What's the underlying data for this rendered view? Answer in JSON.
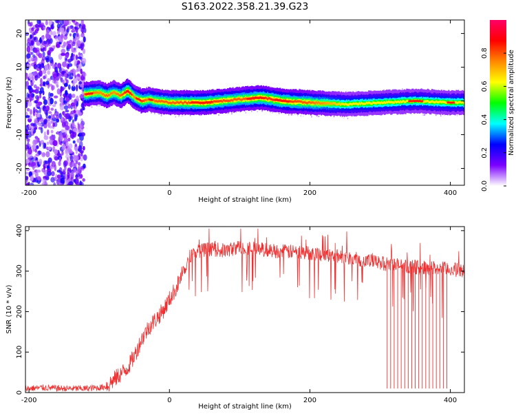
{
  "title": "S163.2022.358.21.39.G23",
  "chart_data": [
    {
      "type": "heatmap",
      "xlabel": "Height of straight line (km)",
      "ylabel": "Frequency (Hz)",
      "xlim": [
        -205,
        420
      ],
      "ylim": [
        -25,
        24
      ],
      "xticks": [
        -200,
        0,
        200,
        400
      ],
      "yticks": [
        -20,
        -10,
        0,
        10,
        20
      ],
      "colorbar": {
        "label": "Normalized spectral amplitude",
        "range": [
          0,
          1
        ],
        "ticks": [
          0.0,
          0.2,
          0.4,
          0.6,
          0.8
        ],
        "colors": [
          "#ffffff",
          "#7b00ff",
          "#0000ff",
          "#00ffff",
          "#00ff00",
          "#ffff00",
          "#ff8800",
          "#ff0000",
          "#ff0066"
        ]
      },
      "ridge": {
        "x": [
          -120,
          -100,
          -90,
          -80,
          -70,
          -60,
          -50,
          -40,
          -30,
          -20,
          0,
          50,
          100,
          130,
          160,
          200,
          250,
          300,
          350,
          400,
          420
        ],
        "freq": [
          2,
          2.5,
          1.5,
          2.5,
          1.5,
          3,
          1,
          0,
          0.5,
          0,
          -0.5,
          -0.5,
          0.5,
          1,
          0,
          -0.5,
          -1,
          -0.5,
          0,
          -0.5,
          -0.5
        ],
        "peak_amplitude": [
          0.85,
          0.8,
          0.85,
          0.8,
          0.85,
          0.95,
          0.8,
          0.9,
          0.8,
          0.85,
          0.85,
          0.9,
          0.85,
          0.9,
          0.9,
          0.85,
          0.7,
          0.7,
          0.7,
          0.7,
          0.7
        ]
      },
      "noise_region_x": [
        -205,
        -120
      ]
    },
    {
      "type": "line",
      "xlabel": "Height of straight line (km)",
      "ylabel": "SNR (10 * v/v)",
      "xlim": [
        -205,
        420
      ],
      "ylim": [
        0,
        410
      ],
      "xticks": [
        -200,
        0,
        200,
        400
      ],
      "yticks": [
        0,
        100,
        200,
        300,
        400
      ],
      "color": "#f03030",
      "series_x": [
        -205,
        -180,
        -150,
        -120,
        -100,
        -90,
        -80,
        -70,
        -60,
        -50,
        -40,
        -30,
        -20,
        -10,
        0,
        10,
        20,
        30,
        40,
        60,
        80,
        100,
        150,
        200,
        250,
        300,
        350,
        400,
        420
      ],
      "series_y": [
        10,
        12,
        10,
        10,
        12,
        15,
        30,
        45,
        60,
        90,
        130,
        160,
        180,
        200,
        230,
        260,
        300,
        340,
        350,
        355,
        350,
        360,
        350,
        345,
        335,
        320,
        310,
        305,
        300
      ],
      "dropouts_x": [
        310,
        315,
        320,
        325,
        330,
        335,
        340,
        345,
        350,
        355,
        360,
        365,
        370,
        375,
        380,
        385,
        390,
        395
      ],
      "dropout_value": 10
    }
  ]
}
